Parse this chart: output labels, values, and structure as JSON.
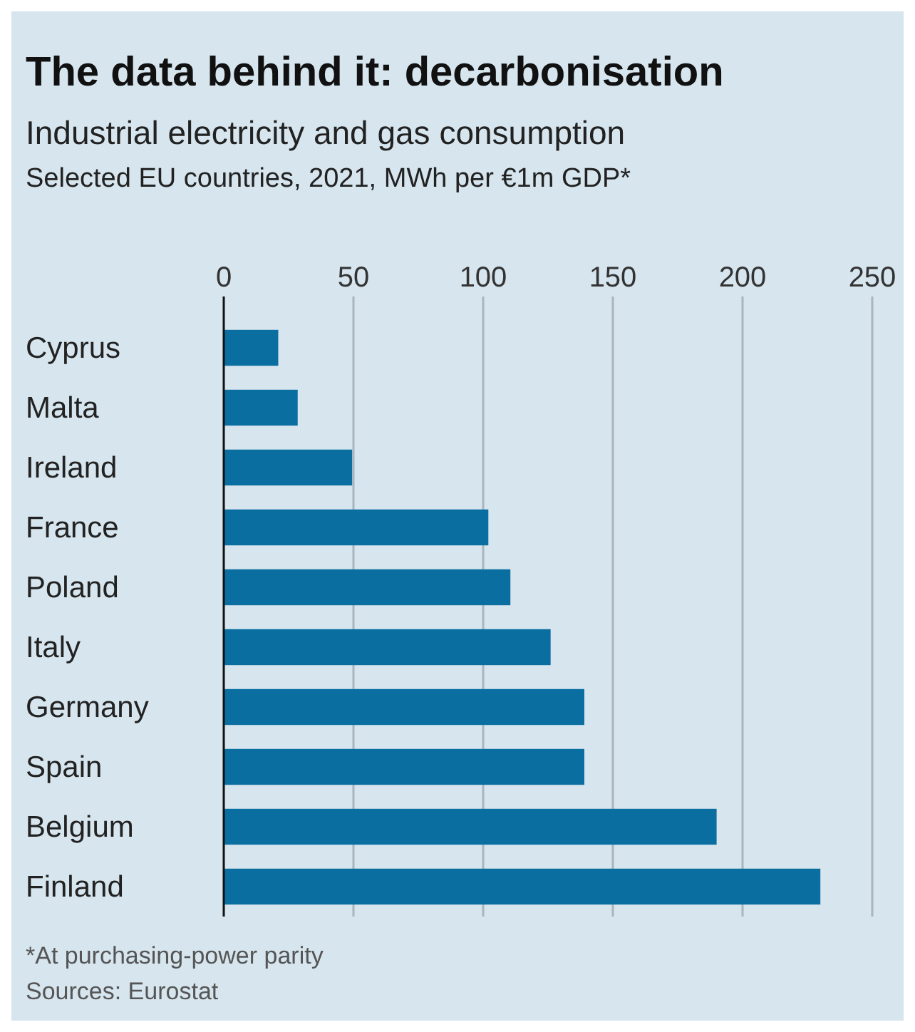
{
  "chart_data": {
    "type": "bar",
    "orientation": "horizontal",
    "title": "The data behind it: decarbonisation",
    "subtitle": "Industrial electricity and gas consumption\nSelected EU countries, 2021, MWh per €1m GDP*",
    "categories": [
      "Cyprus",
      "Malta",
      "Ireland",
      "France",
      "Poland",
      "Italy",
      "Germany",
      "Spain",
      "Belgium",
      "Finland"
    ],
    "values": [
      21,
      28.5,
      49.5,
      102,
      110.5,
      126,
      139,
      139,
      190,
      230
    ],
    "color": "#0a6ea1",
    "xlim": [
      0,
      250
    ],
    "xticks": [
      0,
      50,
      100,
      150,
      200,
      250
    ],
    "grid": "x",
    "annotations": [
      "*At purchasing-power parity",
      "Sources: Eurostat"
    ]
  }
}
